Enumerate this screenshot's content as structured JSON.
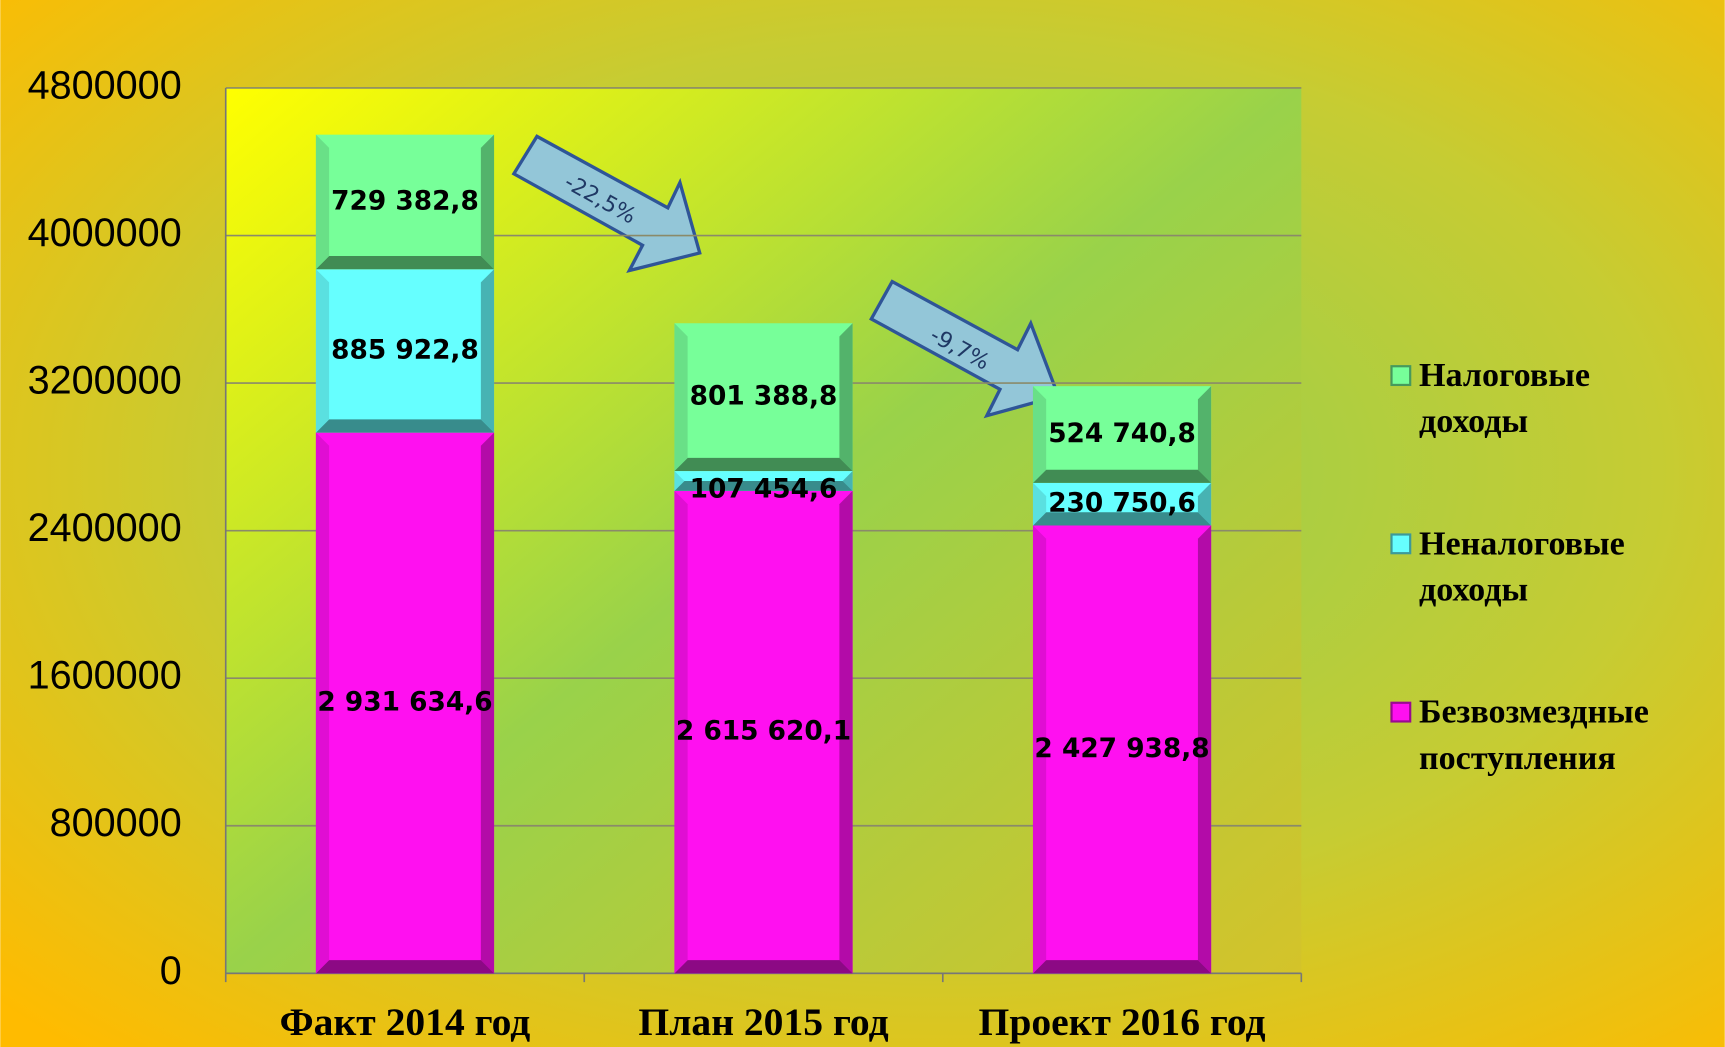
{
  "chart_data": {
    "type": "stacked_bar",
    "categories": [
      "Факт 2014 год",
      "План 2015 год",
      "Проект 2016 год"
    ],
    "series": [
      {
        "name": "Безвозмездные поступления",
        "color": "#ff10f0",
        "values": [
          2931634.6,
          2615620.1,
          2427938.8
        ],
        "value_labels": [
          "2 931 634,6",
          "2 615 620,1",
          "2 427 938,8"
        ]
      },
      {
        "name": "Неналоговые доходы",
        "color": "#66ffff",
        "values": [
          885922.8,
          107454.6,
          230750.6
        ],
        "value_labels": [
          "885 922,8",
          "107 454,6",
          "230 750,6"
        ]
      },
      {
        "name": "Налоговые доходы",
        "color": "#77ff99",
        "values": [
          729382.8,
          801388.8,
          524740.8
        ],
        "value_labels": [
          "729 382,8",
          "801 388,8",
          "524 740,8"
        ]
      }
    ],
    "ylim": [
      0,
      4800000
    ],
    "yticks": [
      0,
      800000,
      1600000,
      2400000,
      3200000,
      4000000,
      4800000
    ],
    "grid": true,
    "legend": "right",
    "annotations": [
      "-22,5%",
      "-9,7%"
    ]
  }
}
